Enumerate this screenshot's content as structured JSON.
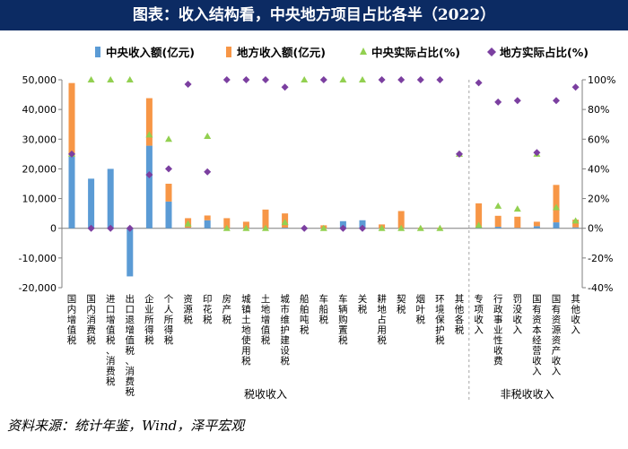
{
  "page_title": "图表：收入结构看，中央地方项目占比各半（2022）",
  "source": "资料来源：统计年鉴，Wind，泽平宏观",
  "colors": {
    "central": "#5b9bd5",
    "local": "#f79646",
    "central_pct": "#92d050",
    "local_pct": "#7b3fa0",
    "title_bg": "#0c2b63"
  },
  "chart_data": {
    "type": "bar",
    "stacked": true,
    "title": "",
    "legend": [
      {
        "key": "central",
        "label": "中央收入额(亿元)",
        "marker": "bar"
      },
      {
        "key": "local",
        "label": "地方收入额(亿元)",
        "marker": "bar"
      },
      {
        "key": "central_pct",
        "label": "中央实际占比(%)",
        "marker": "triangle"
      },
      {
        "key": "local_pct",
        "label": "地方实际占比(%)",
        "marker": "diamond"
      }
    ],
    "y_left": {
      "min": -20000,
      "max": 50000,
      "step": 10000,
      "ticks": [
        "-20,000",
        "-10,000",
        "0",
        "10,000",
        "20,000",
        "30,000",
        "40,000",
        "50,000"
      ]
    },
    "y_right": {
      "min": -40,
      "max": 100,
      "step": 20,
      "ticks": [
        "-40%",
        "-20%",
        "0%",
        "20%",
        "40%",
        "60%",
        "80%",
        "100%"
      ]
    },
    "groups": [
      {
        "label": "税收收入",
        "start": 0,
        "end": 20
      },
      {
        "label": "非税收收入",
        "start": 21,
        "end": 26
      }
    ],
    "categories": [
      "国内增值税",
      "国内消费税",
      "进口增值税、消费税",
      "出口退增值税、消费税",
      "企业所得税",
      "个人所得税",
      "资源税",
      "印花税",
      "房产税",
      "城镇土地使用税",
      "土地增值税",
      "城市维护建设税",
      "船舶吨税",
      "车船税",
      "车辆购置税",
      "关税",
      "耕地占用税",
      "契税",
      "烟叶税",
      "环境保护税",
      "其他各税",
      "专项收入",
      "行政事业性收费",
      "罚没收入",
      "国有资本经营收入",
      "国有资源资产收入",
      "其他收入"
    ],
    "series": [
      {
        "name": "中央收入额(亿元)",
        "kind": "bar",
        "values": [
          24300,
          16700,
          20000,
          -16200,
          27800,
          9000,
          100,
          2700,
          0,
          0,
          0,
          200,
          60,
          0,
          2400,
          2700,
          0,
          0,
          0,
          0,
          0,
          200,
          500,
          100,
          700,
          2000,
          300
        ]
      },
      {
        "name": "地方收入额(亿元)",
        "kind": "bar",
        "values": [
          24600,
          0,
          0,
          0,
          16000,
          6000,
          3300,
          1600,
          3400,
          2200,
          6300,
          4800,
          0,
          1000,
          0,
          0,
          1300,
          5800,
          150,
          200,
          0,
          8200,
          3700,
          3800,
          1500,
          12600,
          2600
        ]
      },
      {
        "name": "中央实际占比(%)",
        "kind": "point",
        "axis": "right",
        "values": [
          50,
          100,
          100,
          100,
          63,
          60,
          3,
          62,
          0,
          0,
          0,
          4,
          100,
          0,
          100,
          100,
          0,
          0,
          0,
          0,
          50,
          2,
          15,
          13,
          50,
          14,
          5
        ]
      },
      {
        "name": "地方实际占比(%)",
        "kind": "point",
        "axis": "right",
        "values": [
          50,
          0,
          0,
          0,
          36,
          40,
          97,
          38,
          100,
          100,
          100,
          95,
          0,
          100,
          0,
          0,
          100,
          100,
          100,
          100,
          50,
          98,
          85,
          86,
          51,
          86,
          95
        ]
      }
    ]
  }
}
